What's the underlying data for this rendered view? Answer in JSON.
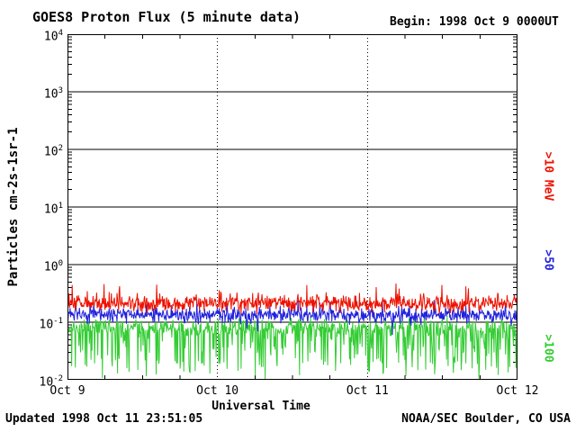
{
  "header": {
    "begin_label": "Begin: 1998 Oct 9 0000UT"
  },
  "footer": {
    "updated": "Updated 1998 Oct 11 23:51:05",
    "credit": "NOAA/SEC Boulder, CO USA"
  },
  "chart_data": {
    "type": "line",
    "title": "GOES8 Proton Flux (5 minute data)",
    "xlabel": "Universal Time",
    "ylabel": "Particles cm-2s-1sr-1",
    "x_tick_labels": [
      "Oct 9",
      "Oct 10",
      "Oct 11",
      "Oct 12"
    ],
    "x_range_days": 3,
    "points_per_day": 288,
    "y_scale": "log",
    "ylim": [
      0.01,
      10000
    ],
    "y_tick_exponents": [
      4,
      3,
      2,
      1,
      0,
      -1,
      -2
    ],
    "grid": {
      "horizontal_decade_lines": "solid",
      "vertical_day_lines": "dotted"
    },
    "legend_position": "right-rotated",
    "seed": 19981009,
    "series": [
      {
        "name": ">10 MeV",
        "label": ">10 MeV",
        "color": "#ee1100",
        "mean_flux": 0.21,
        "scatter_decades": 0.07,
        "spike_prob": 0.06,
        "spike_direction": 1,
        "spike_max_decades": 0.3,
        "approx_range": [
          0.12,
          0.5
        ]
      },
      {
        "name": ">50 MeV",
        "label": ">50",
        "color": "#2222dd",
        "mean_flux": 0.135,
        "scatter_decades": 0.07,
        "spike_prob": 0.05,
        "spike_direction": 0,
        "spike_max_decades": 0.25,
        "approx_range": [
          0.07,
          0.35
        ]
      },
      {
        "name": ">100 MeV",
        "label": ">100",
        "color": "#33cc33",
        "mean_flux": 0.082,
        "scatter_decades": 0.07,
        "spike_prob": 0.33,
        "spike_direction": -1,
        "spike_max_decades": 0.8,
        "approx_range": [
          0.013,
          0.16
        ]
      }
    ]
  }
}
